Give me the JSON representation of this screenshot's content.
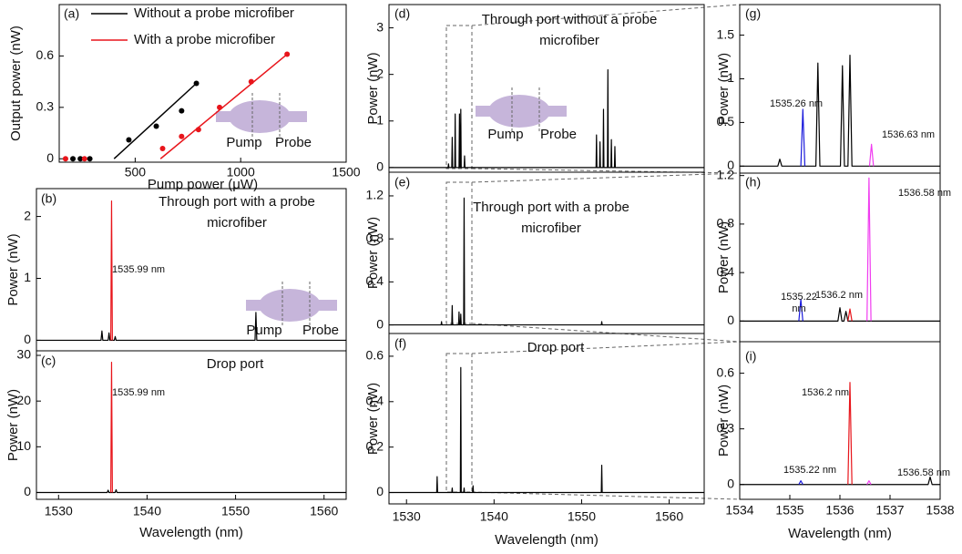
{
  "chart_data": [
    {
      "type": "scatter",
      "label": "(a)",
      "xlabel": "Pump power (μW)",
      "ylabel": "Output power (nW)",
      "xlim": [
        140,
        1500
      ],
      "ylim": [
        -0.02,
        0.9
      ],
      "xticks": [
        500,
        1000,
        1500
      ],
      "yticks": [
        0,
        0.3,
        0.6
      ],
      "legend": "upper left",
      "inset_labels": [
        "Pump",
        "Probe"
      ],
      "series": [
        {
          "name": "Without a probe microfiber",
          "color": "#000000",
          "x": [
            205,
            240,
            285,
            470,
            600,
            720,
            790
          ],
          "values": [
            0,
            0,
            0,
            0.11,
            0.19,
            0.28,
            0.44
          ],
          "fit_x": [
            400,
            790
          ],
          "fit_values": [
            0,
            0.44
          ]
        },
        {
          "name": "With a probe microfiber",
          "color": "#e8151b",
          "x": [
            170,
            260,
            630,
            720,
            800,
            900,
            1050,
            1220
          ],
          "values": [
            0,
            0,
            0.06,
            0.13,
            0.17,
            0.3,
            0.45,
            0.61
          ],
          "fit_x": [
            620,
            1220
          ],
          "fit_values": [
            0,
            0.61
          ]
        }
      ]
    },
    {
      "type": "line",
      "label": "(b)",
      "title": "Through port with a probe microfiber",
      "ylabel": "Power (nW)",
      "xlim": [
        1527.5,
        1562.5
      ],
      "ylim": [
        -0.17,
        2.45
      ],
      "yticks": [
        0,
        1,
        2
      ],
      "annotations": [
        "1535.99 nm"
      ],
      "inset_labels": [
        "Pump",
        "Probe"
      ],
      "series": [
        {
          "color": "#000000",
          "x": [
            1527.5,
            1534.8,
            1534.9,
            1535.0,
            1535.6,
            1535.7,
            1535.8,
            1536.3,
            1536.4,
            1536.5,
            1552.2,
            1552.3,
            1552.4,
            1562.5
          ],
          "values": [
            0,
            0,
            0.15,
            0,
            0,
            0.12,
            0,
            0,
            0.06,
            0,
            0,
            0.45,
            0,
            0
          ]
        },
        {
          "color": "#e8151b",
          "x": [
            1535.9,
            1535.99,
            1536.08
          ],
          "values": [
            0,
            2.25,
            0
          ]
        }
      ]
    },
    {
      "type": "line",
      "label": "(c)",
      "title": "Drop port",
      "ylabel": "Power (nW)",
      "xlabel": "Wavelength (nm)",
      "xlim": [
        1527.5,
        1562.5
      ],
      "ylim": [
        -1.5,
        31
      ],
      "xticks": [
        1530,
        1540,
        1550,
        1560
      ],
      "yticks": [
        0,
        10,
        20,
        30
      ],
      "annotations": [
        "1535.99 nm"
      ],
      "series": [
        {
          "color": "#000000",
          "x": [
            1527.5,
            1535.5,
            1535.6,
            1535.7,
            1536.4,
            1536.5,
            1536.6,
            1562.5
          ],
          "values": [
            0,
            0,
            0.5,
            0,
            0,
            0.6,
            0,
            0
          ]
        },
        {
          "color": "#e8151b",
          "x": [
            1535.9,
            1535.99,
            1536.08
          ],
          "values": [
            0,
            28.5,
            0
          ]
        }
      ]
    },
    {
      "type": "line",
      "label": "(d)",
      "title": "Through port without a probe microfiber",
      "ylabel": "Power (nW)",
      "xlim": [
        1528,
        1564
      ],
      "ylim": [
        -0.1,
        3.5
      ],
      "yticks": [
        0,
        1,
        2,
        3
      ],
      "inset_labels": [
        "Pump",
        "Probe"
      ],
      "series": [
        {
          "color": "#000000",
          "x": [
            1528,
            1534.75,
            1534.8,
            1534.85,
            1535.17,
            1535.22,
            1535.27,
            1535.51,
            1535.56,
            1535.61,
            1536.0,
            1536.05,
            1536.1,
            1536.15,
            1536.2,
            1536.25,
            1536.58,
            1536.63,
            1536.68,
            1551.65,
            1551.7,
            1551.75,
            1552.05,
            1552.1,
            1552.15,
            1552.45,
            1552.5,
            1552.55,
            1552.95,
            1553.0,
            1553.05,
            1553.35,
            1553.4,
            1553.45,
            1553.75,
            1553.8,
            1553.85,
            1564
          ],
          "values": [
            0,
            0,
            0.08,
            0,
            0,
            0.65,
            0,
            0,
            1.15,
            0,
            0,
            1.15,
            0,
            0,
            1.25,
            0,
            0,
            0.25,
            0,
            0,
            0.7,
            0,
            0,
            0.55,
            0,
            0,
            1.25,
            0,
            0,
            2.1,
            0,
            0,
            0.6,
            0,
            0,
            0.45,
            0,
            0
          ]
        }
      ]
    },
    {
      "type": "line",
      "label": "(e)",
      "title": "Through port with a probe microfiber",
      "ylabel": "Power (nW)",
      "xlim": [
        1528,
        1564
      ],
      "ylim": [
        -0.08,
        1.42
      ],
      "yticks": [
        0,
        0.4,
        0.8,
        1.2
      ],
      "series": [
        {
          "color": "#000000",
          "x": [
            1528,
            1533.95,
            1534,
            1534.05,
            1535.17,
            1535.22,
            1535.27,
            1535.95,
            1536.0,
            1536.05,
            1536.15,
            1536.2,
            1536.25,
            1536.53,
            1536.58,
            1536.63,
            1552.25,
            1552.3,
            1552.35,
            1564
          ],
          "values": [
            0,
            0,
            0.03,
            0,
            0,
            0.18,
            0,
            0,
            0.12,
            0,
            0,
            0.1,
            0,
            0,
            1.18,
            0,
            0,
            0.03,
            0,
            0
          ]
        }
      ]
    },
    {
      "type": "line",
      "label": "(f)",
      "title": "Drop port",
      "ylabel": "Power (nW)",
      "xlabel": "Wavelength (nm)",
      "xlim": [
        1528,
        1564
      ],
      "ylim": [
        -0.05,
        0.7
      ],
      "xticks": [
        1530,
        1540,
        1550,
        1560
      ],
      "yticks": [
        0,
        0.2,
        0.4,
        0.6
      ],
      "series": [
        {
          "color": "#000000",
          "x": [
            1528,
            1533.45,
            1533.5,
            1533.55,
            1535.17,
            1535.22,
            1535.27,
            1536.15,
            1536.2,
            1536.25,
            1536.53,
            1536.58,
            1536.63,
            1537.55,
            1537.6,
            1537.65,
            1552.25,
            1552.3,
            1552.35,
            1564
          ],
          "values": [
            0,
            0,
            0.07,
            0,
            0,
            0.02,
            0,
            0,
            0.55,
            0,
            0,
            0.02,
            0,
            0,
            0.03,
            0,
            0,
            0.12,
            0,
            0
          ]
        }
      ]
    },
    {
      "type": "line",
      "label": "(g)",
      "ylabel": "Power (nW)",
      "xlim": [
        1534,
        1538
      ],
      "ylim": [
        -0.08,
        1.85
      ],
      "yticks": [
        0,
        0.5,
        1,
        1.5
      ],
      "annotations": [
        "1535.26 nm",
        "1536.63 nm"
      ],
      "series": [
        {
          "color": "#000000",
          "x": [
            1534,
            1534.76,
            1534.8,
            1534.84,
            1535.52,
            1535.56,
            1535.6,
            1536.01,
            1536.05,
            1536.09,
            1536.16,
            1536.2,
            1536.24,
            1538
          ],
          "values": [
            0,
            0,
            0.08,
            0,
            0,
            1.18,
            0,
            0,
            1.15,
            0,
            0,
            1.27,
            0,
            0
          ]
        },
        {
          "color": "#1a1adb",
          "x": [
            1535.22,
            1535.26,
            1535.3
          ],
          "values": [
            0,
            0.65,
            0
          ]
        },
        {
          "color": "#f03cf0",
          "x": [
            1536.59,
            1536.63,
            1536.67
          ],
          "values": [
            0,
            0.25,
            0
          ]
        }
      ]
    },
    {
      "type": "line",
      "label": "(h)",
      "ylabel": "Power (nW)",
      "xlim": [
        1534,
        1538
      ],
      "ylim": [
        -0.17,
        1.22
      ],
      "yticks": [
        0,
        0.4,
        0.8,
        1.2
      ],
      "annotations": [
        "1536.58 nm",
        "1535.22 nm",
        "1536.2 nm"
      ],
      "series": [
        {
          "color": "#000000",
          "x": [
            1534,
            1535.96,
            1536.0,
            1536.04,
            1536.08,
            1536.12,
            1536.16,
            1538
          ],
          "values": [
            0,
            0,
            0.11,
            0,
            0,
            0.08,
            0,
            0
          ]
        },
        {
          "color": "#1a1adb",
          "x": [
            1535.18,
            1535.22,
            1535.26
          ],
          "values": [
            0,
            0.18,
            0
          ]
        },
        {
          "color": "#e8151b",
          "x": [
            1536.16,
            1536.2,
            1536.24
          ],
          "values": [
            0,
            0.1,
            0
          ]
        },
        {
          "color": "#f03cf0",
          "x": [
            1536.54,
            1536.58,
            1536.62
          ],
          "values": [
            0,
            1.18,
            0
          ]
        }
      ]
    },
    {
      "type": "line",
      "label": "(i)",
      "ylabel": "Power (nW)",
      "xlabel": "Wavelength (nm)",
      "xlim": [
        1534,
        1538
      ],
      "ylim": [
        -0.08,
        0.77
      ],
      "xticks": [
        1534,
        1535,
        1536,
        1537,
        1538
      ],
      "yticks": [
        0,
        0.3,
        0.6
      ],
      "annotations": [
        "1536.2 nm",
        "1535.22 nm",
        "1536.58 nm"
      ],
      "series": [
        {
          "color": "#000000",
          "x": [
            1534,
            1537.76,
            1537.8,
            1537.84,
            1538
          ],
          "values": [
            0,
            0,
            0.04,
            0,
            0
          ]
        },
        {
          "color": "#1a1adb",
          "x": [
            1535.18,
            1535.22,
            1535.26
          ],
          "values": [
            0,
            0.02,
            0
          ]
        },
        {
          "color": "#e8151b",
          "x": [
            1536.16,
            1536.2,
            1536.24
          ],
          "values": [
            0,
            0.55,
            0
          ]
        },
        {
          "color": "#f03cf0",
          "x": [
            1536.54,
            1536.58,
            1536.62
          ],
          "values": [
            0,
            0.02,
            0
          ]
        }
      ]
    }
  ]
}
